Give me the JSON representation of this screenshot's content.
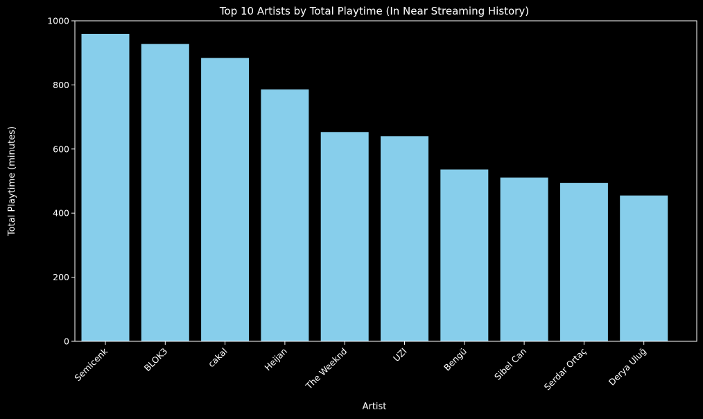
{
  "chart_data": {
    "type": "bar",
    "title": "Top 10 Artists by Total Playtime (In Near Streaming History)",
    "xlabel": "Artist",
    "ylabel": "Total Playtime (minutes)",
    "categories": [
      "Semicenk",
      "BLOK3",
      "cakal",
      "Heijan",
      "The Weeknd",
      "UZI",
      "Bengü",
      "Sibel Can",
      "Serdar Ortaç",
      "Derya Uluğ"
    ],
    "values": [
      959,
      928,
      884,
      786,
      653,
      640,
      536,
      511,
      494,
      455
    ],
    "ylim": [
      0,
      1000
    ],
    "yticks": [
      0,
      200,
      400,
      600,
      800,
      1000
    ],
    "grid": false,
    "legend": "none",
    "colors": {
      "background": "#000000",
      "bar": "#87ceeb",
      "foreground": "#ffffff"
    }
  }
}
